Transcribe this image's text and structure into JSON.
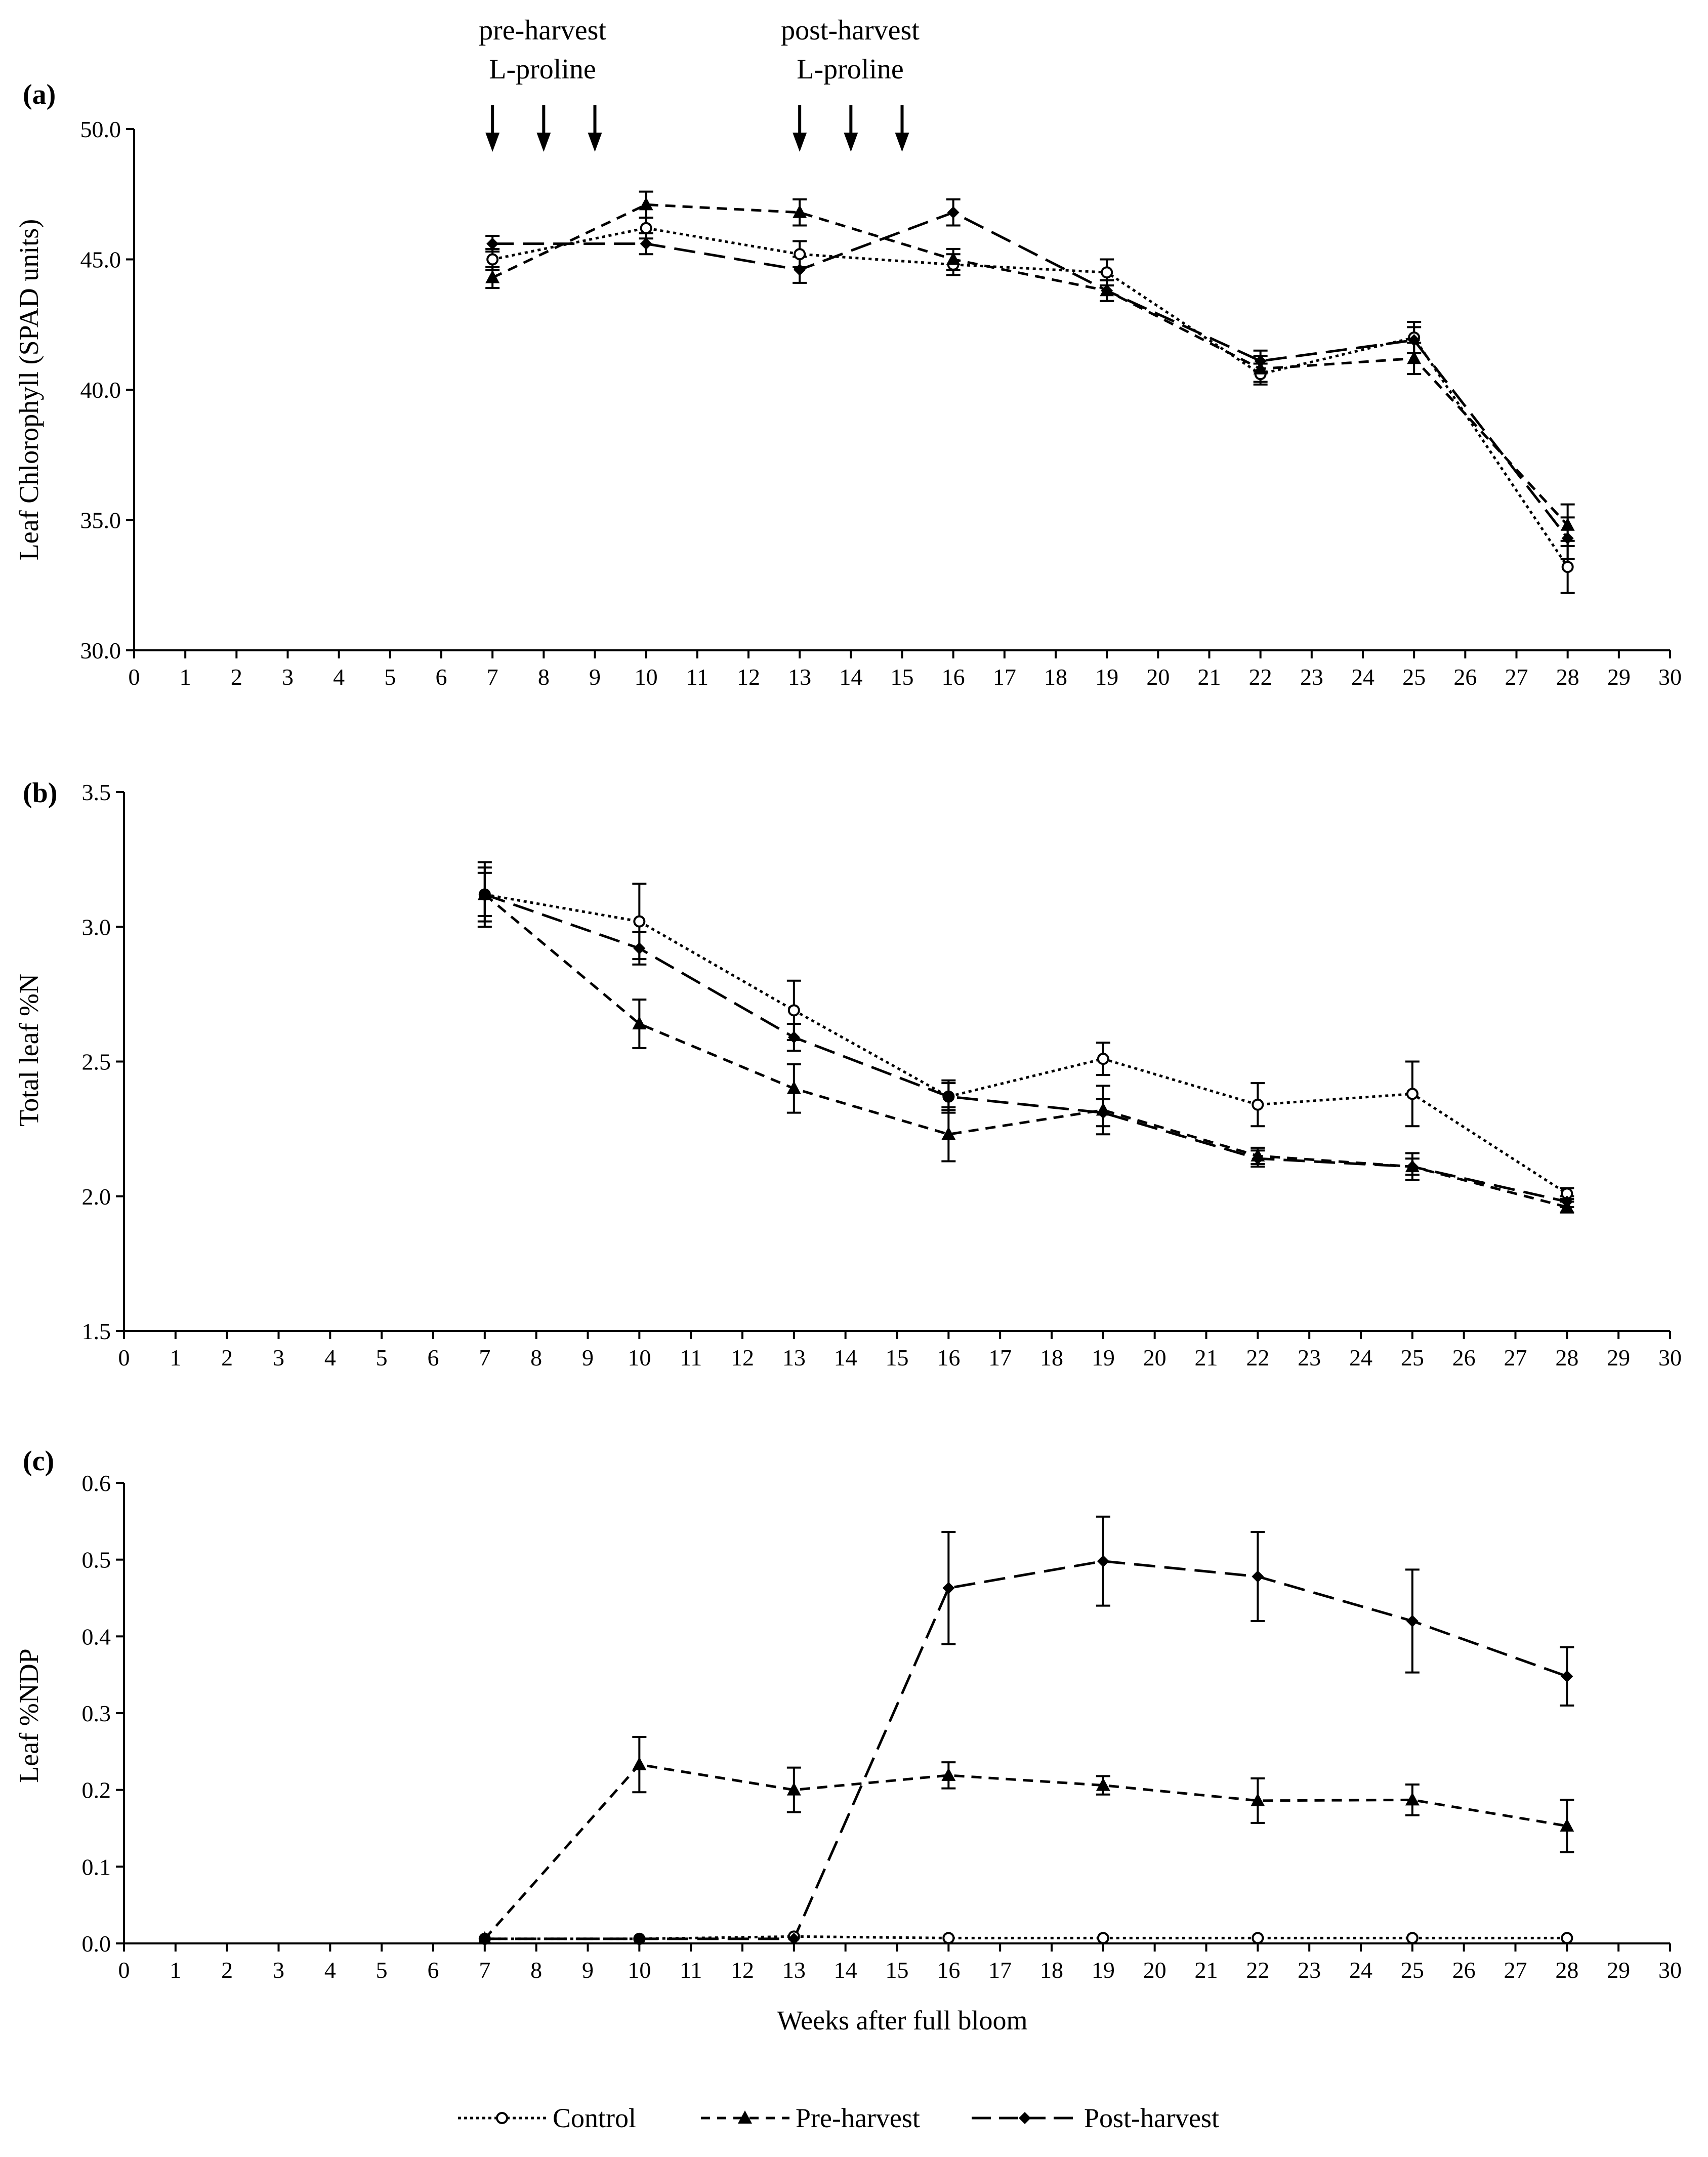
{
  "figure": {
    "x_axis_title": "Weeks after full bloom",
    "annotations": [
      {
        "text_line1": "pre-harvest",
        "text_line2": "L-proline",
        "arrows_at_weeks": [
          7,
          8,
          9
        ]
      },
      {
        "text_line1": "post-harvest",
        "text_line2": "L-proline",
        "arrows_at_weeks": [
          13,
          14,
          15
        ]
      }
    ],
    "legend": [
      {
        "name": "Control",
        "marker": "open-circle",
        "dash": "dotted"
      },
      {
        "name": "Pre-harvest",
        "marker": "triangle",
        "dash": "short-dash"
      },
      {
        "name": "Post-harvest",
        "marker": "diamond",
        "dash": "long-dash"
      }
    ]
  },
  "colors": {
    "line": "#000000",
    "background": "#ffffff"
  },
  "chart_data": [
    {
      "panel": "(a)",
      "type": "line",
      "ylabel": "Leaf Chlorophyll (SPAD units)",
      "xlabel": "",
      "xlim": [
        0,
        30
      ],
      "xticks": [
        0,
        1,
        2,
        3,
        4,
        5,
        6,
        7,
        8,
        9,
        10,
        11,
        12,
        13,
        14,
        15,
        16,
        17,
        18,
        19,
        20,
        21,
        22,
        23,
        24,
        25,
        26,
        27,
        28,
        29,
        30
      ],
      "ylim": [
        30,
        50
      ],
      "yticks": [
        "30.0",
        "35.0",
        "40.0",
        "45.0",
        "50.0"
      ],
      "x": [
        7,
        10,
        13,
        16,
        19,
        22,
        25,
        28
      ],
      "series": [
        {
          "name": "Control",
          "values": [
            45.0,
            46.2,
            45.2,
            44.8,
            44.5,
            40.6,
            42.0,
            33.2
          ],
          "errors": [
            0.4,
            0.4,
            0.5,
            0.4,
            0.5,
            0.4,
            0.6,
            1.0
          ]
        },
        {
          "name": "Pre-harvest",
          "values": [
            44.3,
            47.1,
            46.8,
            45.0,
            43.8,
            40.8,
            41.2,
            34.8
          ],
          "errors": [
            0.4,
            0.5,
            0.5,
            0.4,
            0.4,
            0.5,
            0.6,
            0.8
          ]
        },
        {
          "name": "Post-harvest",
          "values": [
            45.6,
            45.6,
            44.6,
            46.8,
            43.8,
            41.1,
            41.9,
            34.3
          ],
          "errors": [
            0.3,
            0.4,
            0.5,
            0.5,
            0.4,
            0.4,
            0.5,
            0.8
          ]
        }
      ]
    },
    {
      "panel": "(b)",
      "type": "line",
      "ylabel": "Total leaf %N",
      "xlabel": "",
      "xlim": [
        0,
        30
      ],
      "xticks": [
        0,
        1,
        2,
        3,
        4,
        5,
        6,
        7,
        8,
        9,
        10,
        11,
        12,
        13,
        14,
        15,
        16,
        17,
        18,
        19,
        20,
        21,
        22,
        23,
        24,
        25,
        26,
        27,
        28,
        29,
        30
      ],
      "ylim": [
        1.5,
        3.5
      ],
      "yticks": [
        "1.5",
        "2.0",
        "2.5",
        "3.0",
        "3.5"
      ],
      "x": [
        7,
        10,
        13,
        16,
        19,
        22,
        25,
        28
      ],
      "series": [
        {
          "name": "Control",
          "values": [
            3.12,
            3.02,
            2.69,
            2.37,
            2.51,
            2.34,
            2.38,
            2.01
          ],
          "errors": [
            0.12,
            0.14,
            0.11,
            0.06,
            0.06,
            0.08,
            0.12,
            0.02
          ]
        },
        {
          "name": "Pre-harvest",
          "values": [
            3.12,
            2.64,
            2.4,
            2.23,
            2.32,
            2.15,
            2.11,
            1.96
          ],
          "errors": [
            0.1,
            0.09,
            0.09,
            0.1,
            0.09,
            0.03,
            0.05,
            0.02
          ]
        },
        {
          "name": "Post-harvest",
          "values": [
            3.12,
            2.92,
            2.59,
            2.37,
            2.31,
            2.14,
            2.11,
            1.98
          ],
          "errors": [
            0.08,
            0.06,
            0.05,
            0.05,
            0.05,
            0.03,
            0.03,
            0.02
          ]
        }
      ]
    },
    {
      "panel": "(c)",
      "type": "line",
      "ylabel": "Leaf %NDP",
      "xlabel": "Weeks after full bloom",
      "xlim": [
        0,
        30
      ],
      "xticks": [
        0,
        1,
        2,
        3,
        4,
        5,
        6,
        7,
        8,
        9,
        10,
        11,
        12,
        13,
        14,
        15,
        16,
        17,
        18,
        19,
        20,
        21,
        22,
        23,
        24,
        25,
        26,
        27,
        28,
        29,
        30
      ],
      "ylim": [
        0,
        0.6
      ],
      "yticks": [
        "0.0",
        "0.1",
        "0.2",
        "0.3",
        "0.4",
        "0.5",
        "0.6"
      ],
      "x": [
        7,
        10,
        13,
        16,
        19,
        22,
        25,
        28
      ],
      "series": [
        {
          "name": "Control",
          "values": [
            0.006,
            0.006,
            0.009,
            0.007,
            0.007,
            0.007,
            0.007,
            0.007
          ],
          "errors": [
            0,
            0,
            0,
            0,
            0,
            0,
            0,
            0
          ]
        },
        {
          "name": "Pre-harvest",
          "values": [
            0.006,
            0.233,
            0.2,
            0.219,
            0.206,
            0.186,
            0.187,
            0.153
          ],
          "errors": [
            0,
            0.036,
            0.029,
            0.017,
            0.012,
            0.029,
            0.02,
            0.034
          ]
        },
        {
          "name": "Post-harvest",
          "values": [
            0.006,
            0.006,
            0.006,
            0.463,
            0.498,
            0.478,
            0.42,
            0.348
          ],
          "errors": [
            0,
            0,
            0,
            0.073,
            0.058,
            0.058,
            0.067,
            0.038
          ]
        }
      ]
    }
  ]
}
